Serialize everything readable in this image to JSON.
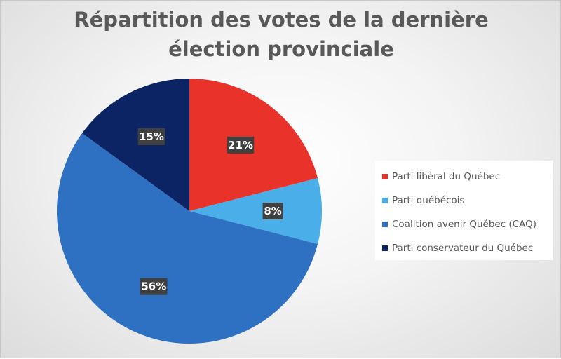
{
  "chart_data": {
    "type": "pie",
    "title_lines": [
      "Répartition des votes de la dernière",
      "élection provinciale"
    ],
    "categories": [
      "Parti libéral du Québec",
      "Parti québécois",
      "Coalition avenir Québec (CAQ)",
      "Parti conservateur du Québec"
    ],
    "values": [
      21,
      8,
      56,
      15
    ],
    "data_labels": [
      "21%",
      "8%",
      "56%",
      "15%"
    ],
    "colors": [
      "#e9322a",
      "#4aaee9",
      "#2e70c1",
      "#0c2364"
    ],
    "legend_position": "right",
    "start_angle": "top, clockwise"
  }
}
